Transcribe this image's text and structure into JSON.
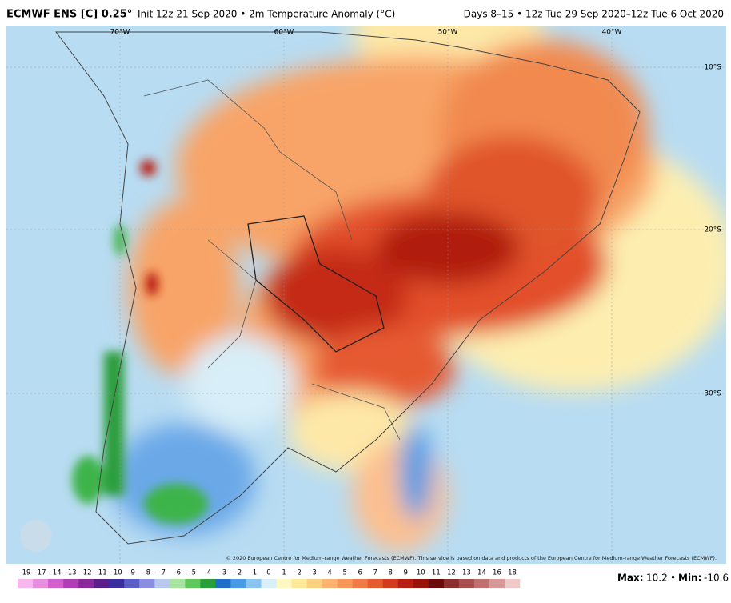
{
  "header": {
    "model": "ECMWF ENS [C] 0.25°",
    "description": "Init 12z 21 Sep 2020 • 2m Temperature Anomaly (°C)",
    "valid": "Days 8–15 • 12z Tue 29 Sep 2020–12z Tue 6 Oct 2020"
  },
  "map": {
    "longitudes": [
      "70°W",
      "60°W",
      "50°W",
      "40°W"
    ],
    "latitudes": [
      "10°S",
      "20°S",
      "30°S"
    ],
    "credit": "© 2020 European Centre for Medium-range Weather Forecasts (ECMWF). This service is based on data and products of the European Centre for Medium-range Weather Forecasts (ECMWF)."
  },
  "colorbar": {
    "ticks": [
      -19,
      -17,
      -14,
      -13,
      -12,
      -11,
      -10,
      -9,
      -8,
      -7,
      -6,
      -5,
      -4,
      -3,
      -2,
      -1,
      0,
      1,
      2,
      3,
      4,
      5,
      6,
      7,
      8,
      9,
      10,
      11,
      12,
      13,
      14,
      16,
      18
    ],
    "colors": [
      "#f7b6f0",
      "#e88ee0",
      "#d25fd0",
      "#b03fb5",
      "#8a2a99",
      "#5b1f8a",
      "#3a2d9e",
      "#5a5fc8",
      "#8a8fe0",
      "#b8c8f0",
      "#a8e6a0",
      "#5fc85a",
      "#2a9e3a",
      "#1f6fc8",
      "#4a9be6",
      "#8ac4f0",
      "#d8eef8",
      "#fff8c0",
      "#ffe898",
      "#fdd080",
      "#fcb470",
      "#f89858",
      "#f07a48",
      "#e65a32",
      "#d43a20",
      "#b81e10",
      "#981408",
      "#6a0a0a",
      "#8a3030",
      "#a85050",
      "#c07070",
      "#d89898",
      "#f0c8c8"
    ]
  },
  "stats": {
    "max_label": "Max:",
    "max": 10.2,
    "separator": "•",
    "min_label": "Min:",
    "min": -10.6
  }
}
